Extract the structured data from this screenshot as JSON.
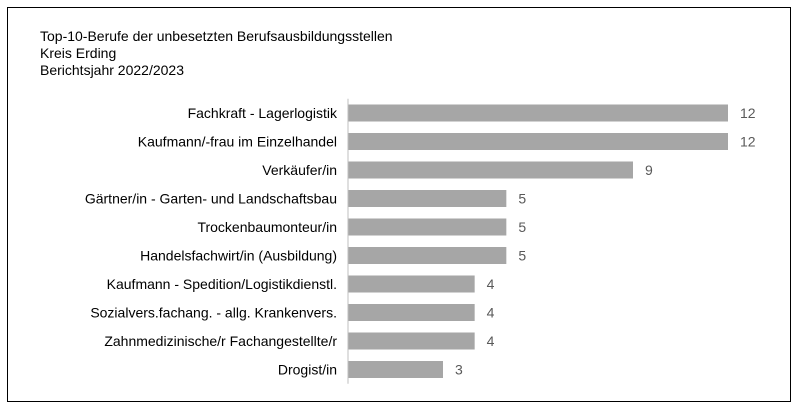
{
  "chart_data": {
    "type": "bar",
    "orientation": "horizontal",
    "title": "Top-10-Berufe der unbesetzten Berufsausbildungsstellen",
    "subtitle": "Kreis Erding",
    "subtitle2": "Berichtsjahr 2022/2023",
    "categories": [
      "Fachkraft - Lagerlogistik",
      "Kaufmann/-frau im Einzelhandel",
      "Verkäufer/in",
      "Gärtner/in - Garten- und Landschaftsbau",
      "Trockenbaumonteur/in",
      "Handelsfachwirt/in (Ausbildung)",
      "Kaufmann - Spedition/Logistikdienstl.",
      "Sozialvers.fachang. - allg. Krankenvers.",
      "Zahnmedizinische/r Fachangestellte/r",
      "Drogist/in"
    ],
    "values": [
      12,
      12,
      9,
      5,
      5,
      5,
      4,
      4,
      4,
      3
    ],
    "xlim": [
      0,
      12
    ],
    "grid": false,
    "legend": "none",
    "bar_color": "#a6a6a6",
    "label_color": "#000000",
    "value_label_color": "#595959",
    "axis_color": "#bfbfbf"
  }
}
